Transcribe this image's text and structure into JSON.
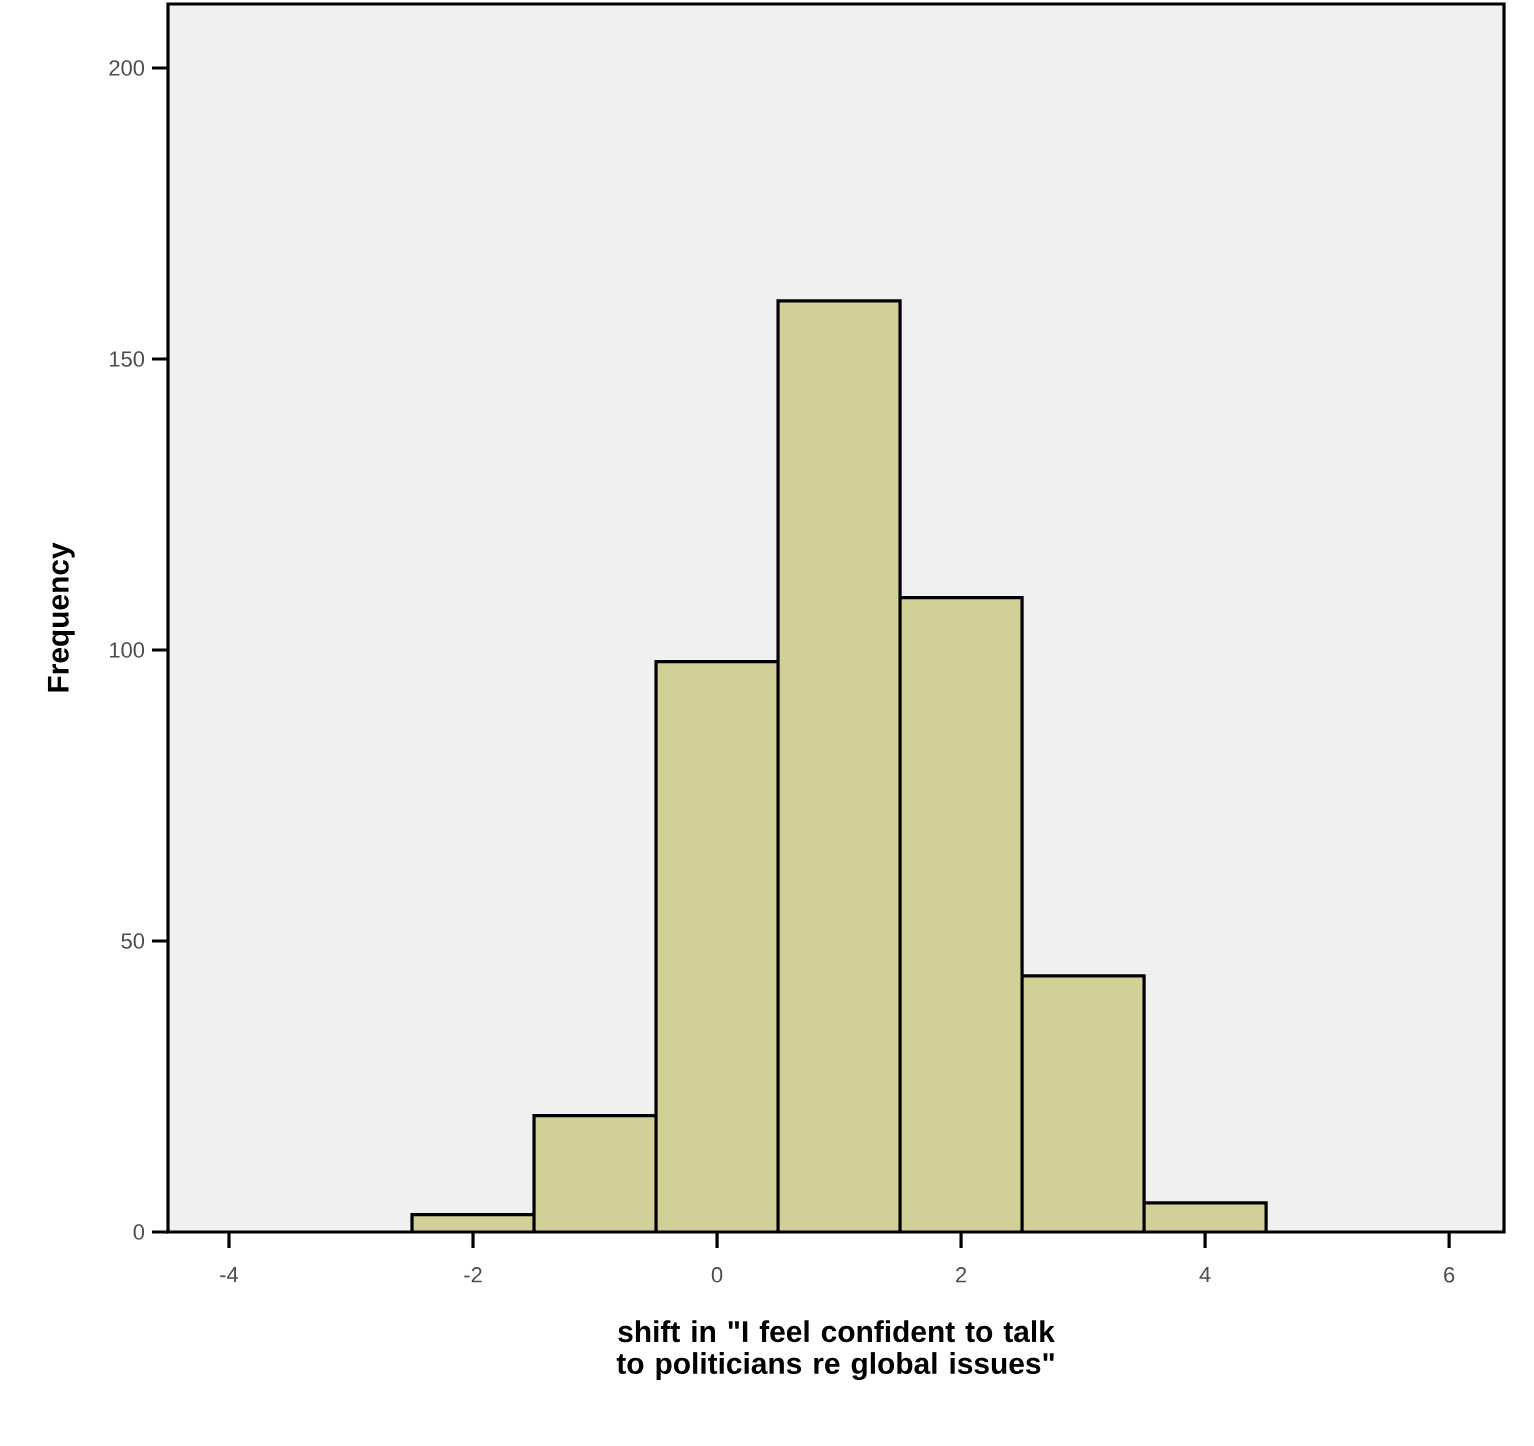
{
  "chart_data": {
    "type": "histogram",
    "xlabel": "shift in \"I feel confident to talk to politicians re global issues\"",
    "ylabel": "Frequency",
    "bins": [
      -2.5,
      -1.5,
      -0.5,
      0.5,
      1.5,
      2.5,
      3.5,
      4.5
    ],
    "values": [
      3,
      20,
      98,
      160,
      109,
      44,
      5
    ],
    "color": "#d3cf98",
    "xlim": [
      -4.5,
      6.45
    ],
    "ylim": [
      0,
      211
    ],
    "xticks": [
      -4,
      -2,
      0,
      2,
      4,
      6
    ],
    "yticks": [
      0,
      50,
      100,
      150,
      200
    ],
    "grid": false
  }
}
